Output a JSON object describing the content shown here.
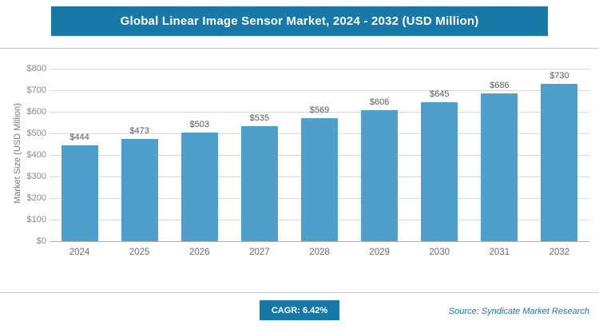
{
  "header": {
    "title": "Global Linear Image Sensor Market, 2024 - 2032 (USD Million)"
  },
  "footer": {
    "cagr_label": "CAGR: 6.42%",
    "source": "Source: Syndicate Market Research"
  },
  "colors": {
    "accent": "#1878A8",
    "bar": "#4F9FCC",
    "gridline": "#d9d9d9"
  },
  "chart_data": {
    "type": "bar",
    "title": "Global Linear Image Sensor Market, 2024 - 2032 (USD Million)",
    "categories": [
      "2024",
      "2025",
      "2026",
      "2027",
      "2028",
      "2029",
      "2030",
      "2031",
      "2032"
    ],
    "values": [
      444,
      473,
      503,
      535,
      569,
      606,
      645,
      686,
      730
    ],
    "value_labels": [
      "$444",
      "$473",
      "$503",
      "$535",
      "$569",
      "$606",
      "$645",
      "$686",
      "$730"
    ],
    "xlabel": "",
    "ylabel": "Market Size (USD Million)",
    "ylim": [
      0,
      800
    ],
    "ytick_step": 100,
    "ytick_labels": [
      "$800",
      "$700",
      "$600",
      "$500",
      "$400",
      "$300",
      "$200",
      "$100",
      "$0"
    ],
    "grid": "horizontal",
    "legend": "none"
  }
}
